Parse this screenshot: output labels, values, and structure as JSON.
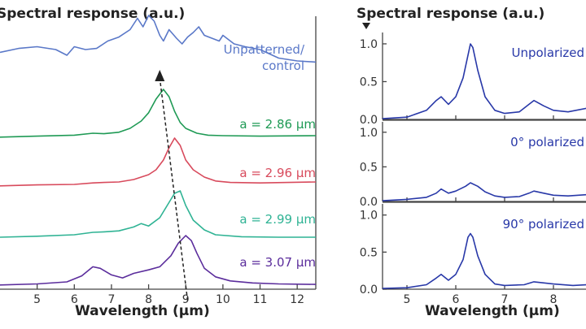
{
  "chart_data": [
    {
      "type": "line",
      "title": "Spectral response (a.u.)",
      "xlabel": "Wavelength (μm)",
      "ylabel": "",
      "xlim": [
        4.0,
        12.5
      ],
      "xticks": [
        "5",
        "6",
        "7",
        "8",
        "9",
        "10",
        "11",
        "12"
      ],
      "peak_trend": "dashed arrow through peaks, pointing up",
      "series": [
        {
          "name": "Unpatterned/ control",
          "color": "#5a78c8",
          "offset": 4,
          "x": [
            4.0,
            4.5,
            5.0,
            5.5,
            5.8,
            6.0,
            6.3,
            6.6,
            6.9,
            7.2,
            7.5,
            7.7,
            7.85,
            8.0,
            8.15,
            8.3,
            8.4,
            8.55,
            8.75,
            8.9,
            9.05,
            9.2,
            9.35,
            9.5,
            9.7,
            9.9,
            10.0,
            10.3,
            10.6,
            11.0,
            11.5,
            12.0,
            12.5
          ],
          "y": [
            0.65,
            0.72,
            0.75,
            0.7,
            0.6,
            0.75,
            0.7,
            0.72,
            0.85,
            0.92,
            1.05,
            1.25,
            1.1,
            1.3,
            1.2,
            0.95,
            0.85,
            1.05,
            0.9,
            0.8,
            0.92,
            1.0,
            1.1,
            0.95,
            0.9,
            0.85,
            0.95,
            0.8,
            0.75,
            0.7,
            0.55,
            0.5,
            0.48
          ]
        },
        {
          "name": "a = 2.86 μm",
          "color": "#1f9a55",
          "offset": 3,
          "x": [
            4.0,
            5.0,
            6.0,
            6.5,
            6.8,
            7.2,
            7.5,
            7.8,
            8.0,
            8.2,
            8.4,
            8.55,
            8.7,
            8.85,
            9.0,
            9.3,
            9.6,
            10.0,
            11.0,
            12.5
          ],
          "y": [
            0.02,
            0.04,
            0.06,
            0.1,
            0.09,
            0.12,
            0.2,
            0.35,
            0.52,
            0.8,
            1.0,
            0.85,
            0.55,
            0.32,
            0.2,
            0.1,
            0.06,
            0.05,
            0.04,
            0.05
          ]
        },
        {
          "name": "a = 2.96 μm",
          "color": "#d84a5c",
          "offset": 2,
          "x": [
            4.0,
            5.0,
            6.0,
            6.5,
            6.8,
            7.2,
            7.6,
            8.0,
            8.2,
            8.4,
            8.55,
            8.7,
            8.85,
            9.0,
            9.2,
            9.5,
            9.8,
            10.2,
            11.0,
            12.5
          ],
          "y": [
            0.02,
            0.04,
            0.05,
            0.08,
            0.09,
            0.1,
            0.15,
            0.25,
            0.35,
            0.55,
            0.8,
            1.0,
            0.85,
            0.55,
            0.35,
            0.2,
            0.12,
            0.09,
            0.08,
            0.1
          ]
        },
        {
          "name": "a = 2.99 μm",
          "color": "#2fb394",
          "offset": 1,
          "x": [
            4.0,
            5.0,
            6.0,
            6.5,
            6.8,
            7.2,
            7.6,
            7.8,
            8.0,
            8.3,
            8.5,
            8.7,
            8.85,
            9.0,
            9.2,
            9.5,
            9.8,
            10.5,
            11.5,
            12.5
          ],
          "y": [
            0.05,
            0.07,
            0.1,
            0.15,
            0.16,
            0.18,
            0.26,
            0.33,
            0.28,
            0.45,
            0.7,
            0.95,
            1.0,
            0.7,
            0.4,
            0.2,
            0.1,
            0.06,
            0.05,
            0.05
          ]
        },
        {
          "name": "a = 3.07 μm",
          "color": "#5b2d9c",
          "offset": 0,
          "x": [
            4.0,
            5.0,
            5.8,
            6.2,
            6.5,
            6.7,
            7.0,
            7.3,
            7.6,
            8.0,
            8.3,
            8.6,
            8.8,
            9.0,
            9.15,
            9.3,
            9.5,
            9.8,
            10.2,
            10.8,
            11.5,
            12.5
          ],
          "y": [
            0.02,
            0.04,
            0.08,
            0.2,
            0.38,
            0.35,
            0.22,
            0.16,
            0.25,
            0.32,
            0.38,
            0.6,
            0.85,
            1.0,
            0.9,
            0.65,
            0.35,
            0.18,
            0.1,
            0.06,
            0.04,
            0.03
          ]
        }
      ]
    },
    {
      "type": "line",
      "title": "Spectral response (a.u.)",
      "xlabel": "Wavelength (μm)",
      "ylabel": "",
      "xlim": [
        4.5,
        8.7
      ],
      "ylim": [
        0.0,
        1.15
      ],
      "xticks": [
        "5",
        "6",
        "7",
        "8"
      ],
      "yticks": [
        "0.0",
        "0.5",
        "1.0"
      ],
      "line_color": "#2838a8",
      "panels": [
        {
          "name": "Unpolarized",
          "x": [
            4.5,
            5.0,
            5.4,
            5.6,
            5.7,
            5.85,
            6.0,
            6.15,
            6.25,
            6.3,
            6.35,
            6.45,
            6.6,
            6.8,
            7.0,
            7.3,
            7.5,
            7.6,
            7.8,
            8.0,
            8.3,
            8.7
          ],
          "y": [
            0.01,
            0.03,
            0.12,
            0.25,
            0.3,
            0.2,
            0.3,
            0.55,
            0.85,
            1.0,
            0.95,
            0.65,
            0.3,
            0.12,
            0.08,
            0.1,
            0.2,
            0.25,
            0.18,
            0.12,
            0.1,
            0.15
          ]
        },
        {
          "name": "0° polarized",
          "x": [
            4.5,
            5.0,
            5.4,
            5.6,
            5.7,
            5.85,
            6.0,
            6.2,
            6.3,
            6.45,
            6.6,
            6.8,
            7.0,
            7.3,
            7.5,
            7.6,
            7.8,
            8.0,
            8.3,
            8.7
          ],
          "y": [
            0.01,
            0.03,
            0.06,
            0.12,
            0.18,
            0.12,
            0.15,
            0.22,
            0.27,
            0.22,
            0.14,
            0.08,
            0.06,
            0.07,
            0.12,
            0.15,
            0.12,
            0.09,
            0.08,
            0.1
          ]
        },
        {
          "name": "90° polarized",
          "x": [
            4.5,
            5.0,
            5.4,
            5.6,
            5.7,
            5.85,
            6.0,
            6.15,
            6.25,
            6.3,
            6.35,
            6.45,
            6.6,
            6.8,
            7.0,
            7.4,
            7.6,
            8.0,
            8.4,
            8.7
          ],
          "y": [
            0.01,
            0.02,
            0.06,
            0.15,
            0.2,
            0.12,
            0.2,
            0.4,
            0.7,
            0.75,
            0.7,
            0.45,
            0.2,
            0.07,
            0.05,
            0.06,
            0.1,
            0.07,
            0.05,
            0.06
          ]
        }
      ]
    }
  ]
}
